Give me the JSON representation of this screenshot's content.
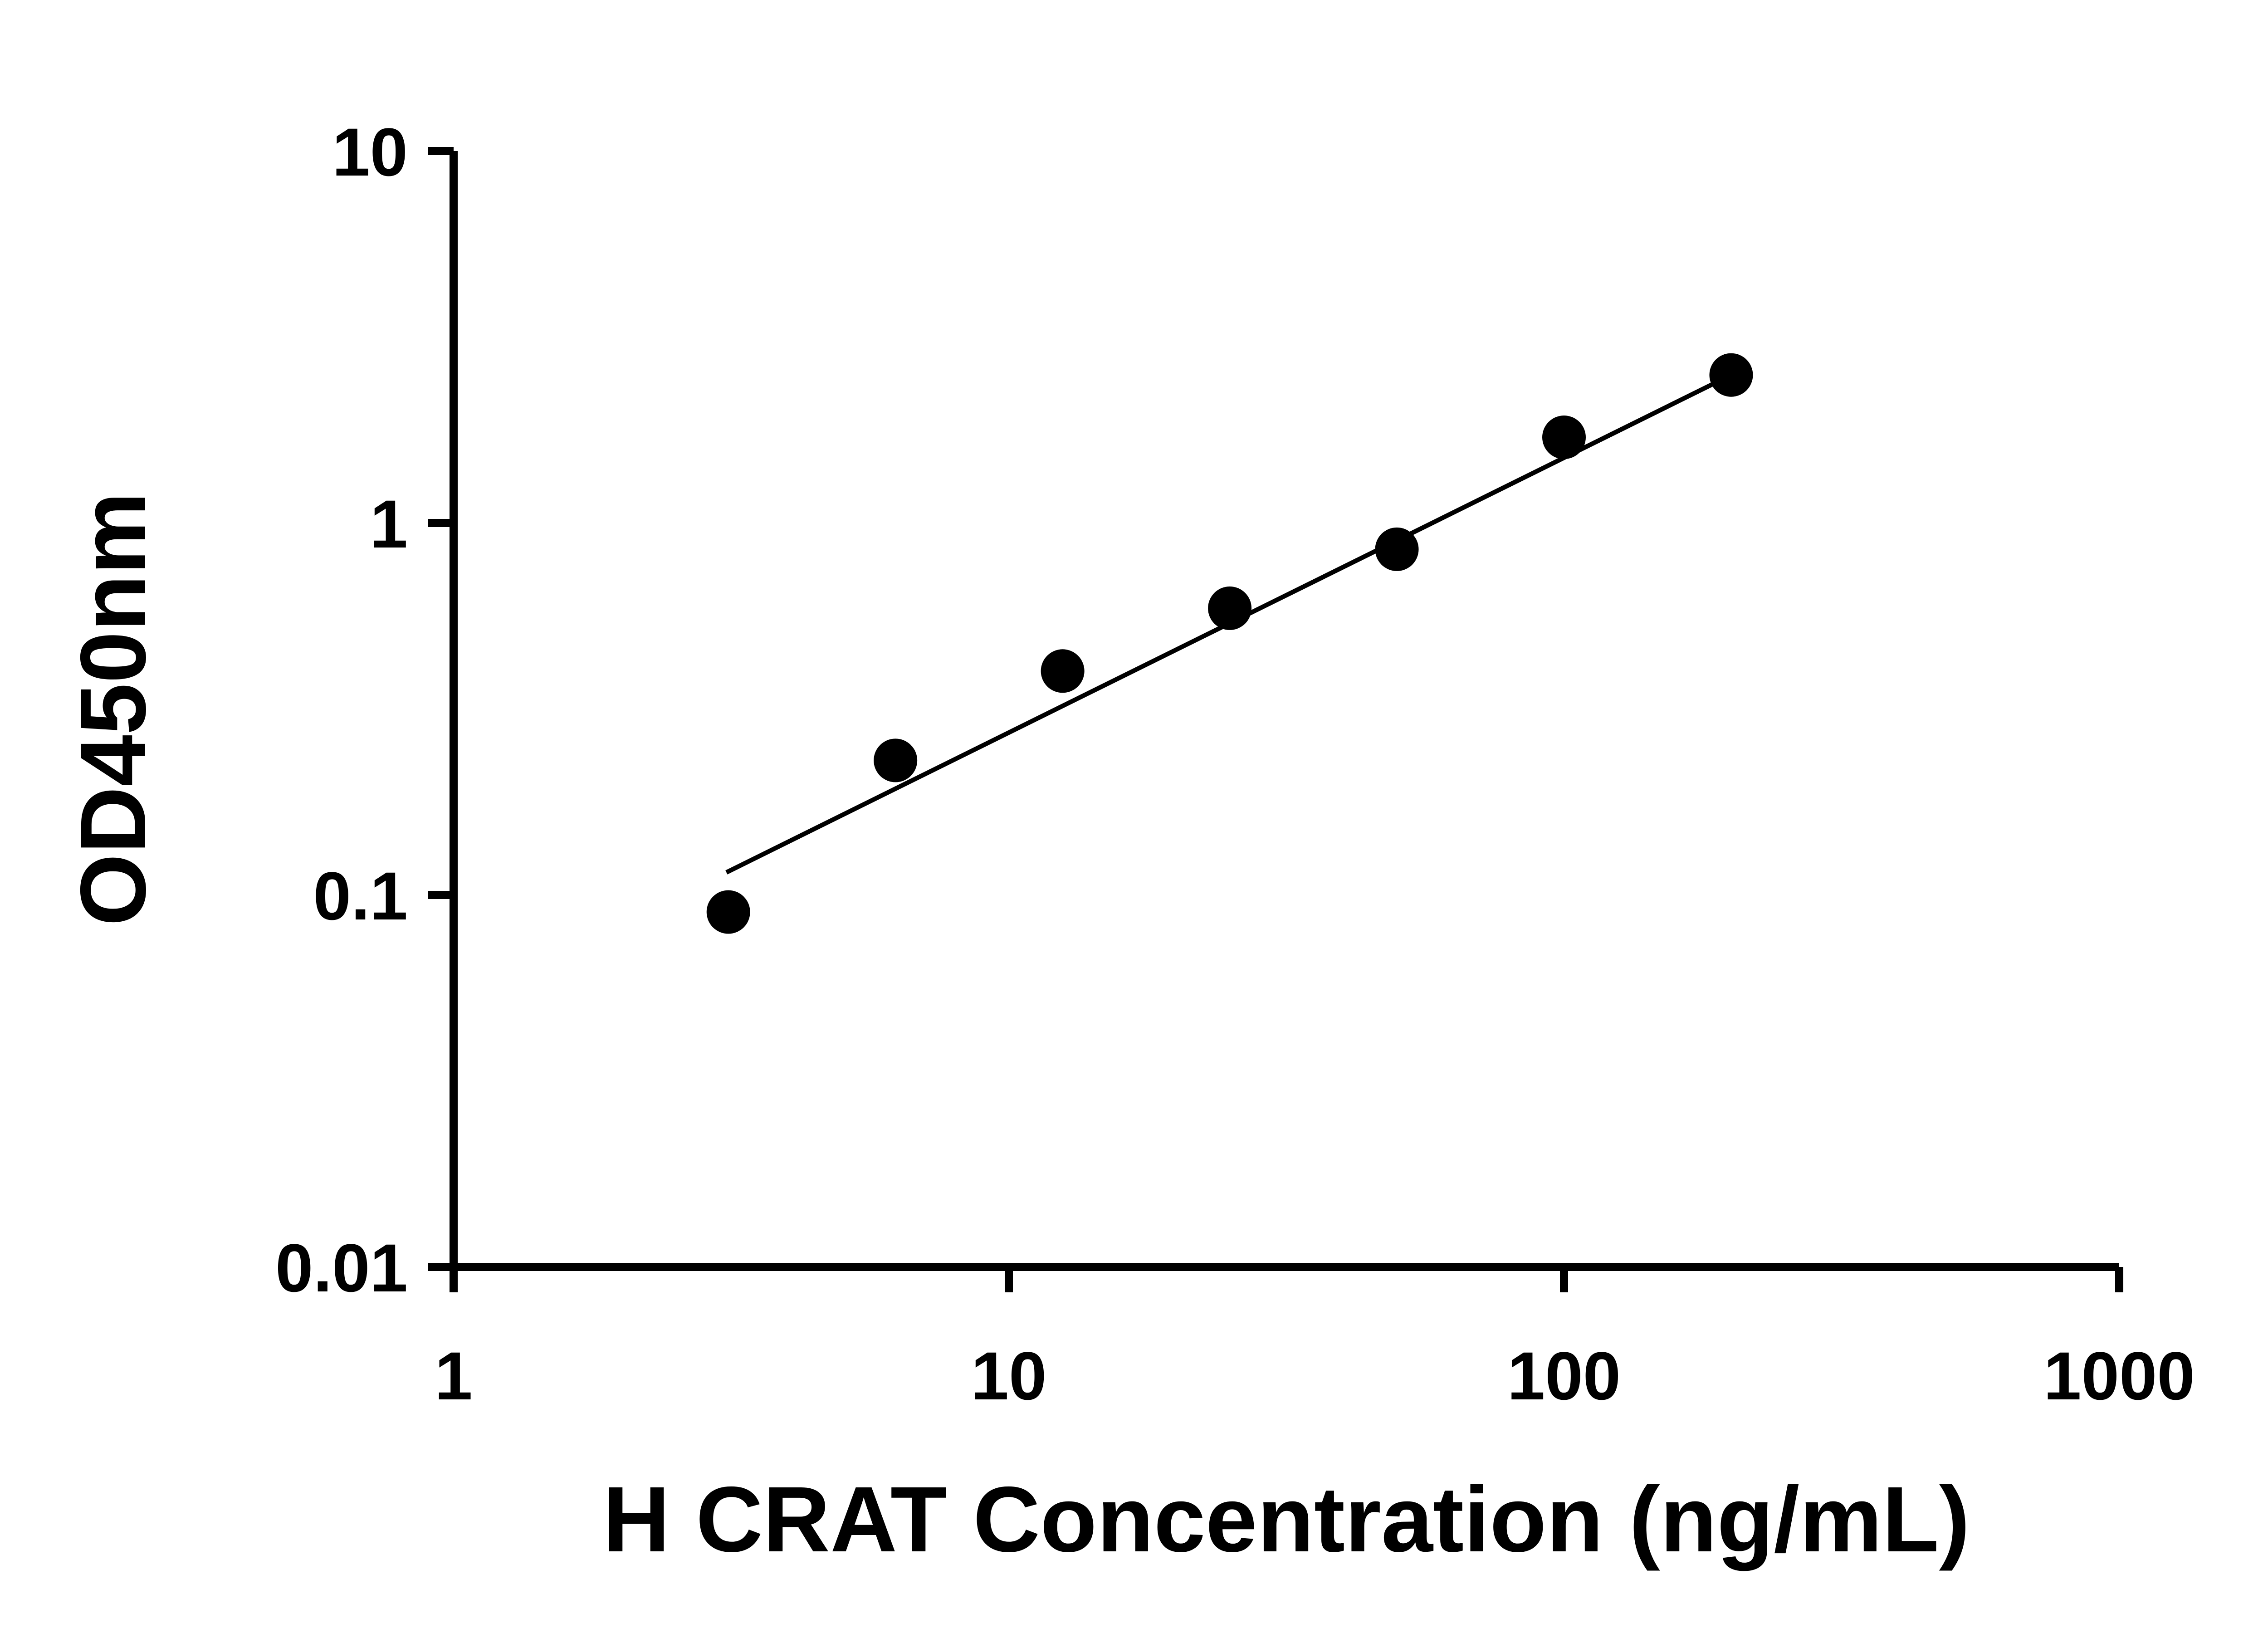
{
  "chart_data": {
    "type": "scatter",
    "title": "",
    "xlabel": "H CRAT Concentration (ng/mL)",
    "ylabel": "OD450nm",
    "x_scale": "log",
    "y_scale": "log",
    "xlim": [
      1,
      1000
    ],
    "ylim": [
      0.01,
      10
    ],
    "grid": false,
    "legend": "none",
    "axis_color": "#000000",
    "marker_color": "#000000",
    "background": "#ffffff",
    "x_ticks": [
      {
        "value": 1,
        "label": "1"
      },
      {
        "value": 10,
        "label": "10"
      },
      {
        "value": 100,
        "label": "100"
      },
      {
        "value": 1000,
        "label": "1000"
      }
    ],
    "y_ticks": [
      {
        "value": 0.01,
        "label": "0.01"
      },
      {
        "value": 0.1,
        "label": "0.1"
      },
      {
        "value": 1,
        "label": "1"
      },
      {
        "value": 10,
        "label": "10"
      }
    ],
    "series": [
      {
        "marker": "circle",
        "color": "#000000",
        "points": [
          {
            "x": 3.125,
            "y": 0.09
          },
          {
            "x": 6.25,
            "y": 0.23
          },
          {
            "x": 12.5,
            "y": 0.4
          },
          {
            "x": 25,
            "y": 0.59
          },
          {
            "x": 50,
            "y": 0.85
          },
          {
            "x": 100,
            "y": 1.7
          },
          {
            "x": 200,
            "y": 2.5
          }
        ]
      }
    ],
    "trend_line": {
      "x1": 3.1,
      "y1": 0.115,
      "x2": 200,
      "y2": 2.5,
      "color": "#000000"
    }
  }
}
